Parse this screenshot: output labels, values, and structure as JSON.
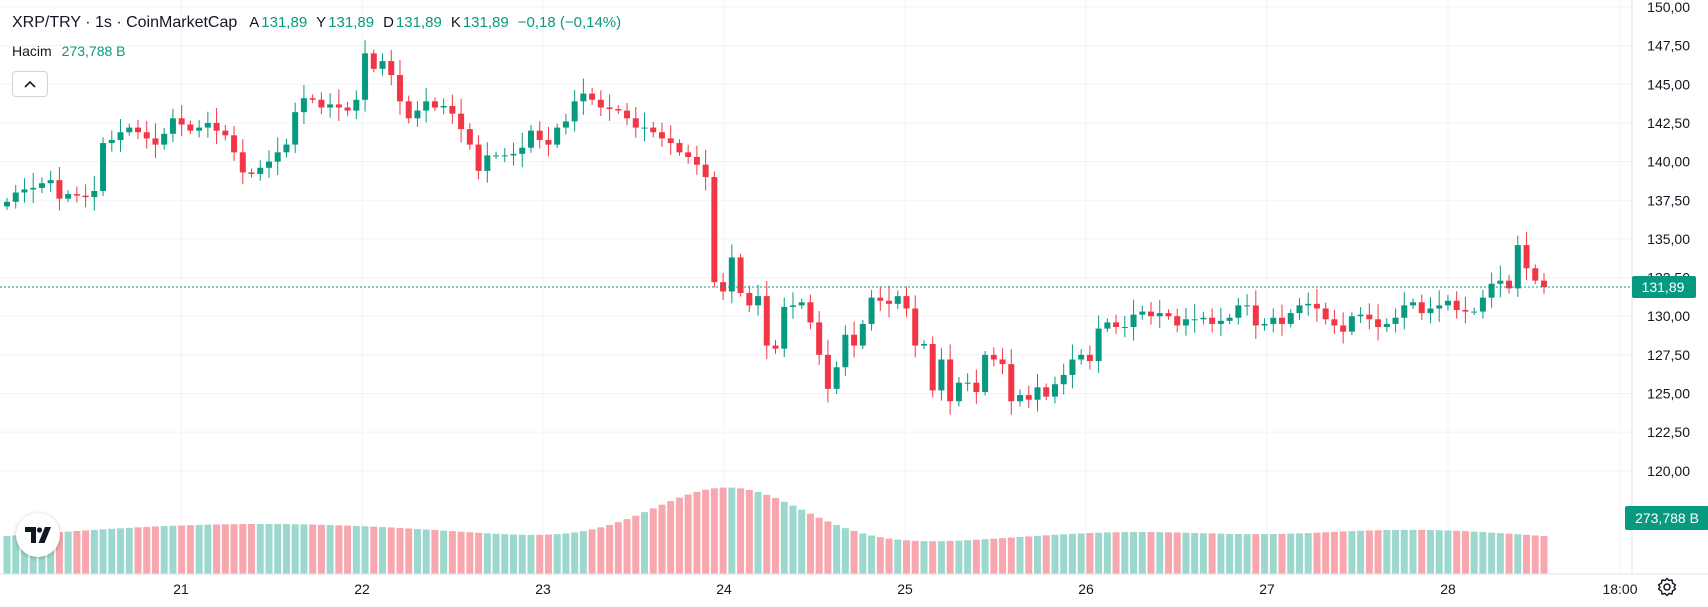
{
  "legend": {
    "symbol": "XRP/TRY · 1s · CoinMarketCap",
    "open_label": "A",
    "open_value": "131,89",
    "high_label": "Y",
    "high_value": "131,89",
    "low_label": "D",
    "low_value": "131,89",
    "close_label": "K",
    "close_value": "131,89",
    "change": "−0,18 (−0,14%)",
    "volume_label": "Hacim",
    "volume_value": "273,788 B"
  },
  "price_axis": {
    "ticks": [
      "150,00",
      "147,50",
      "145,00",
      "142,50",
      "140,00",
      "137,50",
      "135,00",
      "132,50",
      "130,00",
      "127,50",
      "125,00",
      "122,50",
      "120,00"
    ],
    "last_price_badge": "131,89",
    "last_volume_badge": "273,788 B"
  },
  "time_axis": {
    "ticks": [
      "21",
      "22",
      "23",
      "24",
      "25",
      "26",
      "27",
      "28",
      "18:00"
    ]
  },
  "icons": {
    "collapse": "chevron-up-icon",
    "logo": "tradingview-logo-icon",
    "settings": "gear-icon"
  },
  "colors": {
    "up": "#089981",
    "down": "#f23645",
    "volume_up": "#9cd8cd",
    "volume_down": "#f7a7ad",
    "badge": "#089981"
  },
  "chart_data": {
    "type": "candlestick",
    "title": "XRP/TRY · 1s · CoinMarketCap",
    "ylim": [
      118.5,
      150.0
    ],
    "x_ticks": [
      "21",
      "22",
      "23",
      "24",
      "25",
      "26",
      "27",
      "28",
      "18:00"
    ],
    "last_price": 131.89,
    "last_volume": "273,788 B",
    "price": [
      137.4,
      138.0,
      138.2,
      138.3,
      138.6,
      138.8,
      137.6,
      137.9,
      137.8,
      137.7,
      138.1,
      141.2,
      141.4,
      141.9,
      142.2,
      141.9,
      141.5,
      141.1,
      141.8,
      142.8,
      142.4,
      142.0,
      142.2,
      142.5,
      142.0,
      141.7,
      140.6,
      139.3,
      139.2,
      139.6,
      140.0,
      140.6,
      141.1,
      143.2,
      144.1,
      144.0,
      143.5,
      143.7,
      143.5,
      143.3,
      144.0,
      147.0,
      146.0,
      146.5,
      145.6,
      143.9,
      142.8,
      143.3,
      143.9,
      143.5,
      143.6,
      143.1,
      142.1,
      141.1,
      139.4,
      140.4,
      140.4,
      140.4,
      140.5,
      140.9,
      142.0,
      141.4,
      141.1,
      142.2,
      142.6,
      143.9,
      144.4,
      144.0,
      143.5,
      143.4,
      143.3,
      142.8,
      142.2,
      142.2,
      141.9,
      141.5,
      141.2,
      140.6,
      140.3,
      139.8,
      139.0,
      132.2,
      131.6,
      133.8,
      131.5,
      130.7,
      131.3,
      128.1,
      127.9,
      130.6,
      130.7,
      130.9,
      129.6,
      127.5,
      125.3,
      126.7,
      128.8,
      128.1,
      129.5,
      131.2,
      131.0,
      130.8,
      131.3,
      130.5,
      128.1,
      128.2,
      125.2,
      127.2,
      124.5,
      125.7,
      125.7,
      125.1,
      127.5,
      127.2,
      126.9,
      124.5,
      124.9,
      124.6,
      125.4,
      124.8,
      125.6,
      126.2,
      127.2,
      127.5,
      127.1,
      129.2,
      129.6,
      129.3,
      129.3,
      130.1,
      130.3,
      130.0,
      130.2,
      130.0,
      129.4,
      129.8,
      129.8,
      129.9,
      129.5,
      129.7,
      129.9,
      130.7,
      130.7,
      129.4,
      129.5,
      129.9,
      129.5,
      130.2,
      130.7,
      130.8,
      130.5,
      129.8,
      129.4,
      129.0,
      130.0,
      130.1,
      129.8,
      129.3,
      129.5,
      129.9,
      130.7,
      130.9,
      130.2,
      130.5,
      130.7,
      131.0,
      130.4,
      130.3,
      130.3,
      131.2,
      132.1,
      132.3,
      131.8,
      134.6,
      133.1,
      132.3,
      131.89
    ]
  }
}
